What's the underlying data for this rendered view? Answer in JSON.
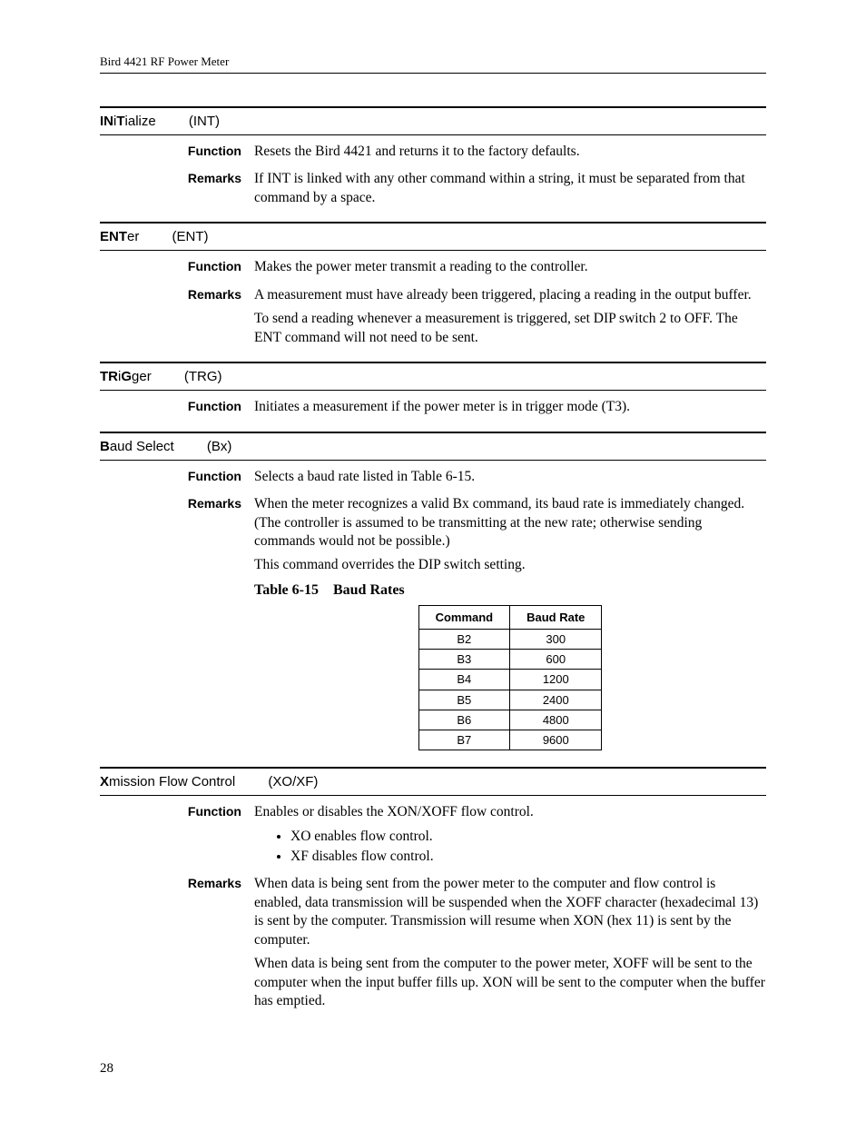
{
  "header": "Bird 4421 RF Power Meter",
  "page_number": "28",
  "sections": {
    "init": {
      "title_html": "<span class='cmd-bold'>IN</span>i<span class='cmd-bold'>T</span>ialize",
      "abbr": "(INT)",
      "function": "Resets the Bird 4421 and returns it to the factory defaults.",
      "remarks": [
        "If INT is linked with any other command within a string, it must be separated from that command by a space."
      ]
    },
    "enter": {
      "title_html": "<span class='cmd-bold'>ENT</span>er",
      "abbr": "(ENT)",
      "function": "Makes the power meter transmit a reading to the controller.",
      "remarks": [
        "A measurement must have already been triggered, placing a reading in the output buffer.",
        "To send a reading whenever a measurement is triggered, set DIP switch 2 to OFF. The ENT command will not need to be sent."
      ]
    },
    "trigger": {
      "title_html": "<span class='cmd-bold'>TR</span>i<span class='cmd-bold'>G</span>ger",
      "abbr": "(TRG)",
      "function": "Initiates a measurement if the power meter is in trigger mode (T3)."
    },
    "baud": {
      "title_html": "<span class='cmd-bold'>B</span>aud Select",
      "abbr": "(Bx)",
      "function": "Selects a baud rate listed in Table 6-15.",
      "remarks": [
        "When the meter recognizes a valid Bx command, its baud rate is immediately changed. (The controller is assumed to be transmitting at the new rate; otherwise sending commands would not be possible.)",
        "This command overrides the DIP switch setting."
      ],
      "table_caption": "Table 6-15 Baud Rates",
      "table_headers": [
        "Command",
        "Baud Rate"
      ],
      "table_rows": [
        [
          "B2",
          "300"
        ],
        [
          "B3",
          "600"
        ],
        [
          "B4",
          "1200"
        ],
        [
          "B5",
          "2400"
        ],
        [
          "B6",
          "4800"
        ],
        [
          "B7",
          "9600"
        ]
      ]
    },
    "xmission": {
      "title_html": "<span class='cmd-bold'>X</span>mission Flow Control",
      "abbr": "(XO/XF)",
      "function": "Enables or disables the XON/XOFF flow control.",
      "bullets": [
        "XO enables flow control.",
        "XF disables flow control."
      ],
      "remarks": [
        "When data is being sent from the power meter to the computer and flow control is enabled, data transmission will be suspended when the XOFF character (hexadecimal 13) is sent by the computer. Transmission will resume when XON (hex 11) is sent by the computer.",
        "When data is being sent from the computer to the power meter, XOFF will be sent to the computer when the input buffer fills up. XON will be sent to the computer when the buffer has emptied."
      ]
    }
  }
}
